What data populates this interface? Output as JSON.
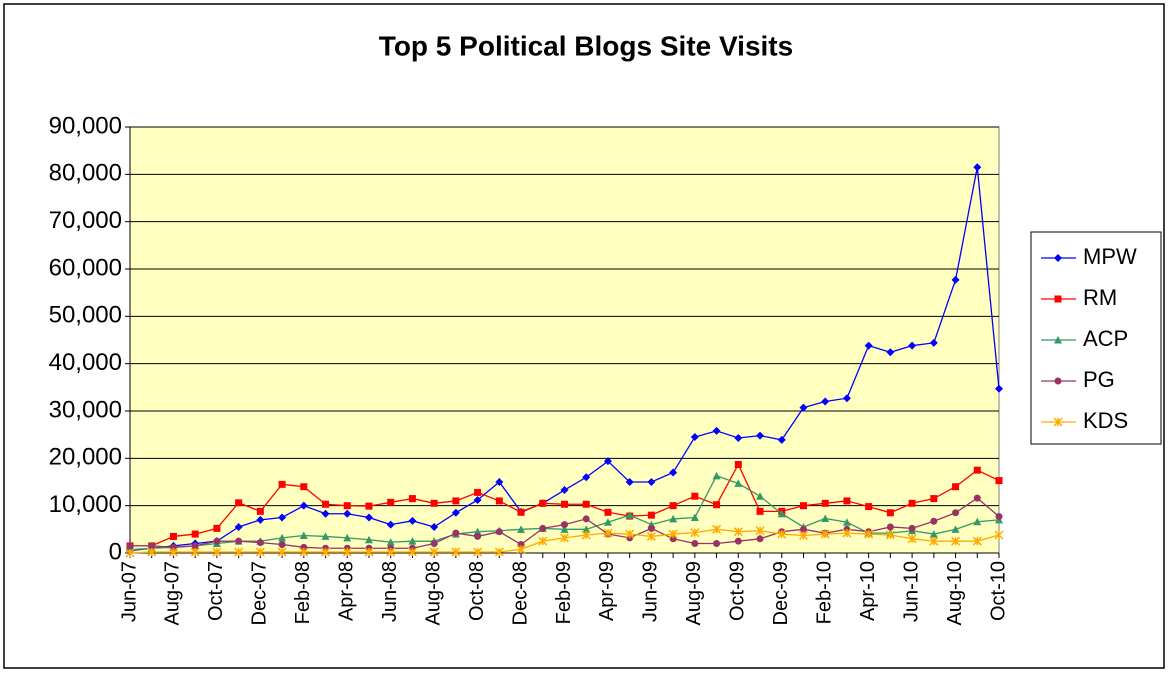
{
  "chart_data": {
    "type": "line",
    "title": "Top 5 Political Blogs Site Visits",
    "categories": [
      "Jun-07",
      null,
      "Aug-07",
      null,
      "Oct-07",
      null,
      "Dec-07",
      null,
      "Feb-08",
      null,
      "Apr-08",
      null,
      "Jun-08",
      null,
      "Aug-08",
      null,
      "Oct-08",
      null,
      "Dec-08",
      null,
      "Feb-09",
      null,
      "Apr-09",
      null,
      "Jun-09",
      null,
      "Aug-09",
      null,
      "Oct-09",
      null,
      "Dec-09",
      null,
      "Feb-10",
      null,
      "Apr-10",
      null,
      "Jun-10",
      null,
      "Aug-10",
      null,
      "Oct-10"
    ],
    "series": [
      {
        "name": "MPW",
        "color": "#0000ff",
        "marker": "diamond",
        "values": [
          500,
          1000,
          1500,
          2000,
          2500,
          5500,
          7000,
          7500,
          10000,
          8300,
          8300,
          7500,
          6000,
          6800,
          5500,
          8500,
          11200,
          15000,
          8700,
          10500,
          13300,
          16000,
          19400,
          15000,
          15000,
          17000,
          24500,
          25800,
          24300,
          24800,
          23900,
          30700,
          32000,
          32700,
          43800,
          42400,
          43800,
          44400,
          57700,
          81500,
          34700
        ]
      },
      {
        "name": "RM",
        "color": "#ff0000",
        "marker": "square",
        "values": [
          1500,
          1500,
          3500,
          4000,
          5200,
          10600,
          8800,
          14500,
          14000,
          10300,
          10000,
          9900,
          10700,
          11500,
          10500,
          11000,
          12800,
          11000,
          8600,
          10500,
          10300,
          10300,
          8600,
          7800,
          8000,
          10000,
          12000,
          10200,
          18700,
          8800,
          8800,
          10000,
          10500,
          11000,
          9800,
          8500,
          10500,
          11500,
          14000,
          17500,
          15300
        ]
      },
      {
        "name": "ACP",
        "color": "#339966",
        "marker": "triangle",
        "values": [
          700,
          1000,
          1200,
          1500,
          2000,
          2500,
          2500,
          3200,
          3700,
          3500,
          3200,
          2800,
          2300,
          2500,
          2500,
          4000,
          4500,
          4700,
          5000,
          5200,
          5000,
          5000,
          6500,
          8000,
          6000,
          7200,
          7500,
          16300,
          14700,
          12000,
          8300,
          5500,
          7300,
          6500,
          4200,
          4200,
          4700,
          4000,
          5000,
          6600,
          7000
        ]
      },
      {
        "name": "PG",
        "color": "#993366",
        "marker": "circle",
        "values": [
          1500,
          1500,
          1200,
          1500,
          2500,
          2500,
          2200,
          1800,
          1200,
          1000,
          1000,
          1000,
          1000,
          1000,
          2000,
          4200,
          3500,
          4500,
          1800,
          5200,
          6000,
          7200,
          4000,
          3200,
          5200,
          3000,
          2000,
          2000,
          2500,
          3000,
          4500,
          5000,
          4200,
          5000,
          4500,
          5500,
          5200,
          6700,
          8500,
          11600,
          7700
        ]
      },
      {
        "name": "KDS",
        "color": "#ffaa00",
        "marker": "star",
        "values": [
          0,
          200,
          200,
          200,
          200,
          200,
          200,
          200,
          200,
          200,
          200,
          200,
          200,
          200,
          200,
          200,
          200,
          200,
          800,
          2500,
          3200,
          3800,
          4200,
          4000,
          3500,
          4000,
          4300,
          5000,
          4500,
          4700,
          4000,
          3700,
          4000,
          4200,
          4000,
          3800,
          3000,
          2500,
          2500,
          2500,
          3800
        ]
      }
    ],
    "ylim": [
      0,
      90000
    ],
    "yticks": [
      0,
      {
        "value": 10000,
        "label": "10,000"
      },
      {
        "value": 20000,
        "label": "20,000"
      },
      {
        "value": 30000,
        "label": "30,000"
      },
      {
        "value": 40000,
        "label": "40,000"
      },
      {
        "value": 50000,
        "label": "50,000"
      },
      {
        "value": 60000,
        "label": "60,000"
      },
      {
        "value": 70000,
        "label": "70,000"
      },
      {
        "value": 80000,
        "label": "80,000"
      },
      {
        "value": 90000,
        "label": "90,000"
      }
    ],
    "grid": true,
    "legend": "right",
    "plot_background": "#ffffc0"
  }
}
